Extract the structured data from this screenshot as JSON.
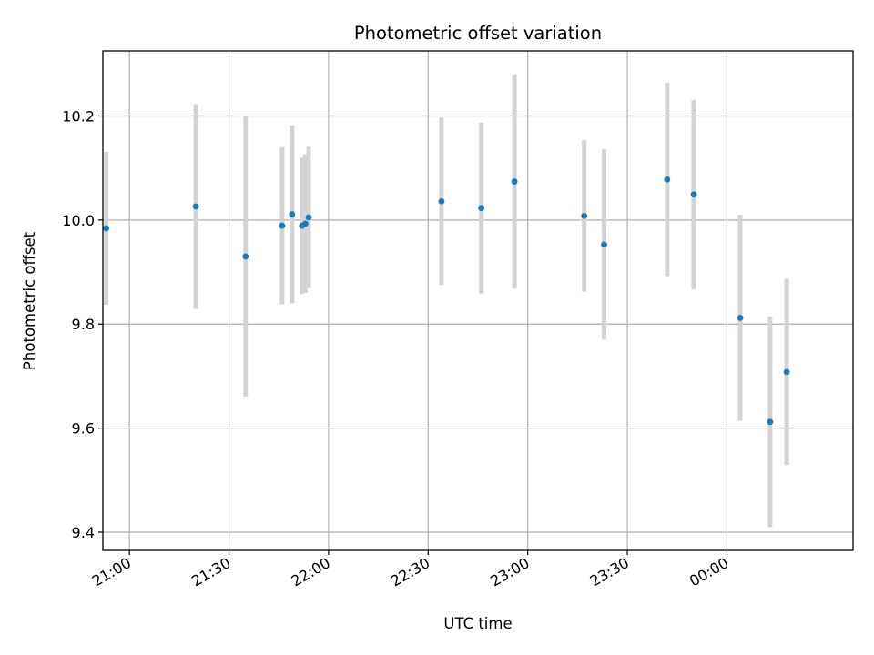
{
  "chart_data": {
    "type": "scatter",
    "title": "Photometric offset variation",
    "xlabel": "UTC time",
    "ylabel": "Photometric offset",
    "x_unit": "UTC time (HH:MM)",
    "xlim": [
      "20:52",
      "00:38"
    ],
    "ylim": [
      9.365,
      10.325
    ],
    "x_ticks": [
      "21:00",
      "21:30",
      "22:00",
      "22:30",
      "23:00",
      "23:30",
      "00:00"
    ],
    "y_ticks": [
      9.4,
      9.6,
      9.8,
      10.0,
      10.2
    ],
    "y_tick_labels": [
      "9.4",
      "9.6",
      "9.8",
      "10.0",
      "10.2"
    ],
    "grid": true,
    "point_color": "#1f77b4",
    "errorbar_color": "#d3d3d3",
    "points": [
      {
        "x": "20:53",
        "y": 9.984,
        "err": 0.147
      },
      {
        "x": "21:20",
        "y": 10.026,
        "err": 0.197
      },
      {
        "x": "21:35",
        "y": 9.93,
        "err": 0.269
      },
      {
        "x": "21:46",
        "y": 9.989,
        "err": 0.151
      },
      {
        "x": "21:49",
        "y": 10.011,
        "err": 0.171
      },
      {
        "x": "21:52",
        "y": 9.989,
        "err": 0.131
      },
      {
        "x": "21:53",
        "y": 9.993,
        "err": 0.133
      },
      {
        "x": "21:54",
        "y": 10.005,
        "err": 0.136
      },
      {
        "x": "22:34",
        "y": 10.036,
        "err": 0.161
      },
      {
        "x": "22:46",
        "y": 10.023,
        "err": 0.164
      },
      {
        "x": "22:56",
        "y": 10.074,
        "err": 0.206
      },
      {
        "x": "23:17",
        "y": 10.008,
        "err": 0.146
      },
      {
        "x": "23:23",
        "y": 9.953,
        "err": 0.183
      },
      {
        "x": "23:42",
        "y": 10.078,
        "err": 0.186
      },
      {
        "x": "23:50",
        "y": 10.049,
        "err": 0.182
      },
      {
        "x": "00:04",
        "y": 9.812,
        "err": 0.198
      },
      {
        "x": "00:13",
        "y": 9.612,
        "err": 0.202
      },
      {
        "x": "00:18",
        "y": 9.708,
        "err": 0.179
      }
    ]
  }
}
